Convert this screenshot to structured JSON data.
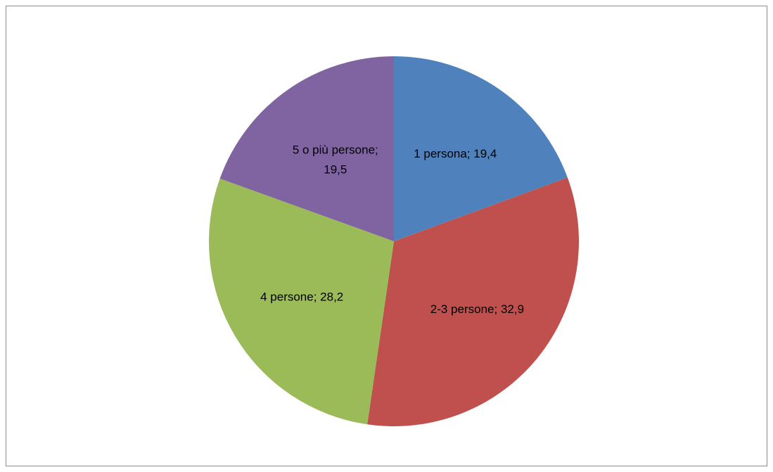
{
  "chart_data": {
    "type": "pie",
    "title": "",
    "start_angle_deg": 90,
    "direction": "clockwise",
    "slices": [
      {
        "label": "1 persona",
        "value": 19.4,
        "display": "1 persona; 19,4",
        "color": "#4f81bd"
      },
      {
        "label": "2-3 persone",
        "value": 32.9,
        "display": "2-3 persone; 32,9",
        "color": "#c0504d"
      },
      {
        "label": "4 persone",
        "value": 28.2,
        "display": "4 persone; 28,2",
        "color": "#9bbb59"
      },
      {
        "label": "5 o più persone",
        "value": 19.5,
        "display": "5 o più persone; 19,5",
        "color": "#8064a2"
      }
    ],
    "legend": "none"
  }
}
